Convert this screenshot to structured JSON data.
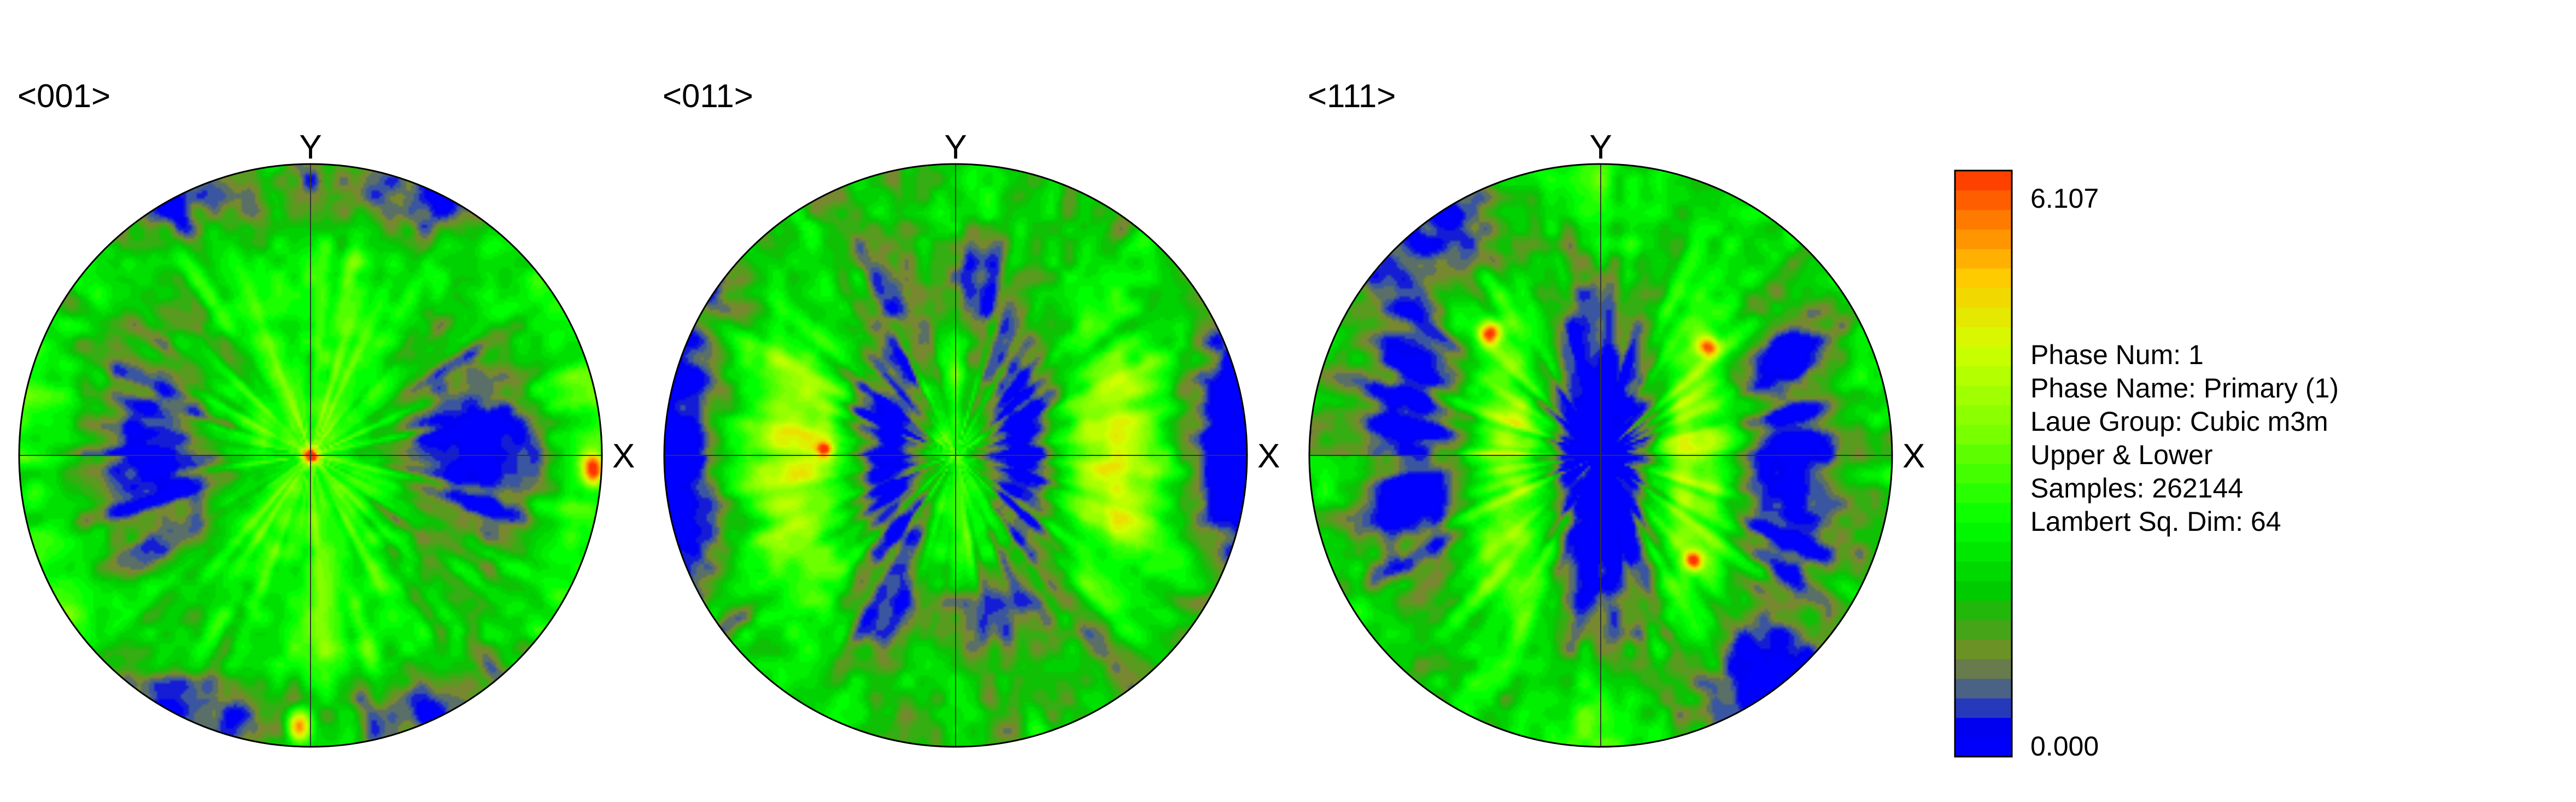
{
  "chart_data": {
    "type": "heatmap",
    "subtype": "pole-figure",
    "figures": [
      {
        "title": "<001>",
        "x_axis_label": "X",
        "y_axis_label": "Y",
        "pattern": "001"
      },
      {
        "title": "<011>",
        "x_axis_label": "X",
        "y_axis_label": "Y",
        "pattern": "011"
      },
      {
        "title": "<111>",
        "x_axis_label": "X",
        "y_axis_label": "Y",
        "pattern": "111"
      }
    ],
    "colorbar": {
      "max_label": "6.107",
      "min_label": "0.000",
      "max": 6.107,
      "min": 0.0,
      "levels": 30,
      "colors": [
        "#0000ff",
        "#3b56a0",
        "#7a8a2a",
        "#00cc00",
        "#00ff00",
        "#66ff00",
        "#ccff00",
        "#ffcc00",
        "#ff7700",
        "#ff3300"
      ]
    },
    "info": [
      "Phase Num: 1",
      "Phase Name: Primary (1)",
      "Laue Group: Cubic m3m",
      "Upper & Lower",
      "Samples: 262144",
      "Lambert Sq. Dim: 64"
    ]
  }
}
